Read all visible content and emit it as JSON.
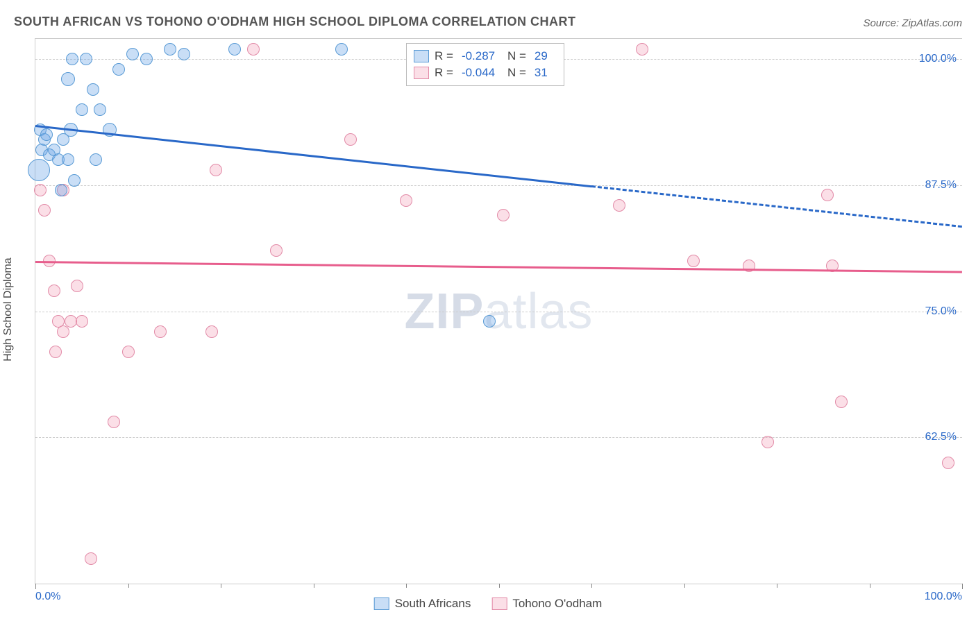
{
  "header": {
    "title": "SOUTH AFRICAN VS TOHONO O'ODHAM HIGH SCHOOL DIPLOMA CORRELATION CHART",
    "source": "Source: ZipAtlas.com"
  },
  "chart": {
    "type": "scatter",
    "ylabel": "High School Diploma",
    "xlim": [
      0,
      100
    ],
    "ylim": [
      48,
      102
    ],
    "y_ticks": [
      62.5,
      75.0,
      87.5,
      100.0
    ],
    "y_tick_labels": [
      "62.5%",
      "75.0%",
      "87.5%",
      "100.0%"
    ],
    "x_major": [
      0,
      100
    ],
    "x_tick_labels": [
      "0.0%",
      "100.0%"
    ],
    "x_minor": [
      10,
      20,
      30,
      40,
      50,
      60,
      70,
      80,
      90
    ],
    "grid_color": "#cccccc",
    "background_color": "#ffffff",
    "watermark_prefix": "ZIP",
    "watermark_suffix": "atlas",
    "series": {
      "blue": {
        "label": "South Africans",
        "fill": "rgba(100,160,230,0.35)",
        "stroke": "#5a9bd5",
        "line_color": "#2968c8",
        "r_value": "-0.287",
        "n_value": "29",
        "trend": {
          "x1": 0,
          "y1": 93.5,
          "x2": 60,
          "y2": 87.5,
          "x2_ext": 100,
          "y2_ext": 83.5
        },
        "points": [
          {
            "x": 0.5,
            "y": 93,
            "r": 9
          },
          {
            "x": 1.0,
            "y": 92,
            "r": 9
          },
          {
            "x": 0.7,
            "y": 91,
            "r": 9
          },
          {
            "x": 1.2,
            "y": 92.5,
            "r": 9
          },
          {
            "x": 1.5,
            "y": 90.5,
            "r": 9
          },
          {
            "x": 0.4,
            "y": 89,
            "r": 16
          },
          {
            "x": 2.0,
            "y": 91,
            "r": 9
          },
          {
            "x": 2.5,
            "y": 90,
            "r": 9
          },
          {
            "x": 3.0,
            "y": 92,
            "r": 9
          },
          {
            "x": 3.8,
            "y": 93,
            "r": 10
          },
          {
            "x": 3.5,
            "y": 90,
            "r": 9
          },
          {
            "x": 4.2,
            "y": 88,
            "r": 9
          },
          {
            "x": 2.8,
            "y": 87,
            "r": 9
          },
          {
            "x": 5.0,
            "y": 95,
            "r": 9
          },
          {
            "x": 3.5,
            "y": 98,
            "r": 10
          },
          {
            "x": 4.0,
            "y": 100,
            "r": 9
          },
          {
            "x": 5.5,
            "y": 100,
            "r": 9
          },
          {
            "x": 6.2,
            "y": 97,
            "r": 9
          },
          {
            "x": 7.0,
            "y": 95,
            "r": 9
          },
          {
            "x": 8.0,
            "y": 93,
            "r": 10
          },
          {
            "x": 6.5,
            "y": 90,
            "r": 9
          },
          {
            "x": 9.0,
            "y": 99,
            "r": 9
          },
          {
            "x": 10.5,
            "y": 100.5,
            "r": 9
          },
          {
            "x": 12.0,
            "y": 100,
            "r": 9
          },
          {
            "x": 14.5,
            "y": 101,
            "r": 9
          },
          {
            "x": 16.0,
            "y": 100.5,
            "r": 9
          },
          {
            "x": 21.5,
            "y": 101,
            "r": 9
          },
          {
            "x": 33.0,
            "y": 101,
            "r": 9
          },
          {
            "x": 49.0,
            "y": 74,
            "r": 9
          }
        ]
      },
      "pink": {
        "label": "Tohono O'odham",
        "fill": "rgba(240,140,170,0.28)",
        "stroke": "#e28aa7",
        "line_color": "#e75d8c",
        "r_value": "-0.044",
        "n_value": "31",
        "trend": {
          "x1": 0,
          "y1": 80,
          "x2": 100,
          "y2": 79
        },
        "points": [
          {
            "x": 0.5,
            "y": 87,
            "r": 9
          },
          {
            "x": 1.0,
            "y": 85,
            "r": 9
          },
          {
            "x": 1.5,
            "y": 80,
            "r": 9
          },
          {
            "x": 2.0,
            "y": 77,
            "r": 9
          },
          {
            "x": 2.5,
            "y": 74,
            "r": 9
          },
          {
            "x": 3.0,
            "y": 73,
            "r": 9
          },
          {
            "x": 3.8,
            "y": 74,
            "r": 9
          },
          {
            "x": 4.5,
            "y": 77.5,
            "r": 9
          },
          {
            "x": 2.2,
            "y": 71,
            "r": 9
          },
          {
            "x": 5.0,
            "y": 74,
            "r": 9
          },
          {
            "x": 3.0,
            "y": 87.0,
            "r": 9
          },
          {
            "x": 6.0,
            "y": 50.5,
            "r": 9
          },
          {
            "x": 8.5,
            "y": 64,
            "r": 9
          },
          {
            "x": 10.0,
            "y": 71,
            "r": 9
          },
          {
            "x": 13.5,
            "y": 73,
            "r": 9
          },
          {
            "x": 19.0,
            "y": 73,
            "r": 9
          },
          {
            "x": 19.5,
            "y": 89,
            "r": 9
          },
          {
            "x": 23.5,
            "y": 101,
            "r": 9
          },
          {
            "x": 26.0,
            "y": 81,
            "r": 9
          },
          {
            "x": 34.0,
            "y": 92,
            "r": 9
          },
          {
            "x": 40.0,
            "y": 86,
            "r": 9
          },
          {
            "x": 50.5,
            "y": 84.5,
            "r": 9
          },
          {
            "x": 63.0,
            "y": 85.5,
            "r": 9
          },
          {
            "x": 65.5,
            "y": 101,
            "r": 9
          },
          {
            "x": 71.0,
            "y": 80,
            "r": 9
          },
          {
            "x": 77.0,
            "y": 79.5,
            "r": 9
          },
          {
            "x": 79.0,
            "y": 62,
            "r": 9
          },
          {
            "x": 85.5,
            "y": 86.5,
            "r": 9
          },
          {
            "x": 86.0,
            "y": 79.5,
            "r": 9
          },
          {
            "x": 87.0,
            "y": 66,
            "r": 9
          },
          {
            "x": 98.5,
            "y": 60,
            "r": 9
          }
        ]
      }
    },
    "stats_legend": {
      "r_label": "R =",
      "n_label": "N ="
    }
  }
}
